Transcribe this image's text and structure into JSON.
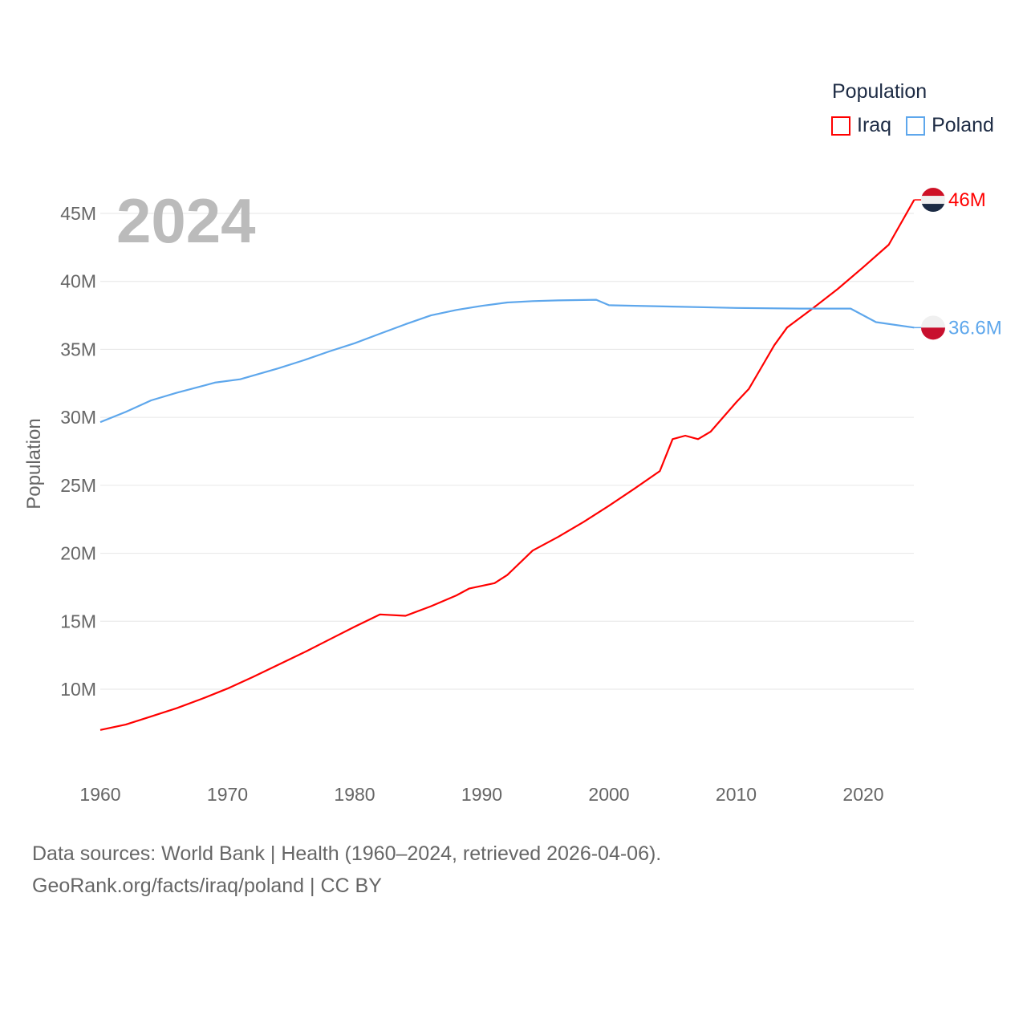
{
  "chart_data": {
    "type": "line",
    "title": "Population",
    "year_label": "2024",
    "ylabel": "Population",
    "xlabel": "",
    "xlim": [
      1960,
      2024
    ],
    "ylim": [
      4,
      47
    ],
    "grid": true,
    "legend_position": "top-right",
    "x_ticks": [
      1960,
      1970,
      1980,
      1990,
      2000,
      2010,
      2020
    ],
    "x_tick_labels": [
      "1960",
      "1970",
      "1980",
      "1990",
      "2000",
      "2010",
      "2020"
    ],
    "y_ticks": [
      10,
      15,
      20,
      25,
      30,
      35,
      40,
      45
    ],
    "y_tick_labels": [
      "10M",
      "15M",
      "20M",
      "25M",
      "30M",
      "35M",
      "40M",
      "45M"
    ],
    "series": [
      {
        "name": "Iraq",
        "color": "#ff0000",
        "end_label": "46M",
        "unit": "millions",
        "x": [
          1960,
          1962,
          1964,
          1966,
          1968,
          1970,
          1972,
          1974,
          1976,
          1978,
          1980,
          1982,
          1984,
          1986,
          1988,
          1989,
          1990,
          1991,
          1992,
          1994,
          1996,
          1998,
          2000,
          2002,
          2004,
          2005,
          2006,
          2007,
          2008,
          2010,
          2011,
          2012,
          2013,
          2014,
          2016,
          2018,
          2020,
          2022,
          2024
        ],
        "y": [
          7.0,
          7.4,
          8.0,
          8.6,
          9.3,
          10.05,
          10.9,
          11.8,
          12.7,
          13.65,
          14.6,
          15.5,
          15.4,
          16.1,
          16.9,
          17.4,
          17.6,
          17.8,
          18.4,
          20.2,
          21.2,
          22.3,
          23.5,
          24.75,
          26.05,
          28.4,
          28.65,
          28.4,
          28.95,
          31.1,
          32.1,
          33.7,
          35.3,
          36.6,
          38.0,
          39.45,
          41.05,
          42.7,
          46.0
        ]
      },
      {
        "name": "Poland",
        "color": "#5ea7ec",
        "end_label": "36.6M",
        "unit": "millions",
        "x": [
          1960,
          1962,
          1964,
          1966,
          1968,
          1969,
          1971,
          1974,
          1976,
          1978,
          1980,
          1982,
          1984,
          1986,
          1988,
          1990,
          1992,
          1994,
          1996,
          1999,
          2000,
          2005,
          2010,
          2015,
          2019,
          2021,
          2024
        ],
        "y": [
          29.65,
          30.4,
          31.25,
          31.8,
          32.3,
          32.55,
          32.8,
          33.6,
          34.2,
          34.85,
          35.45,
          36.15,
          36.85,
          37.5,
          37.9,
          38.2,
          38.45,
          38.55,
          38.6,
          38.65,
          38.25,
          38.15,
          38.05,
          38.0,
          38.0,
          37.0,
          36.6
        ]
      }
    ]
  },
  "footer": {
    "line1": "Data sources: World Bank | Health (1960–2024, retrieved 2026-04-06).",
    "line2": "GeoRank.org/facts/iraq/poland | CC BY"
  }
}
